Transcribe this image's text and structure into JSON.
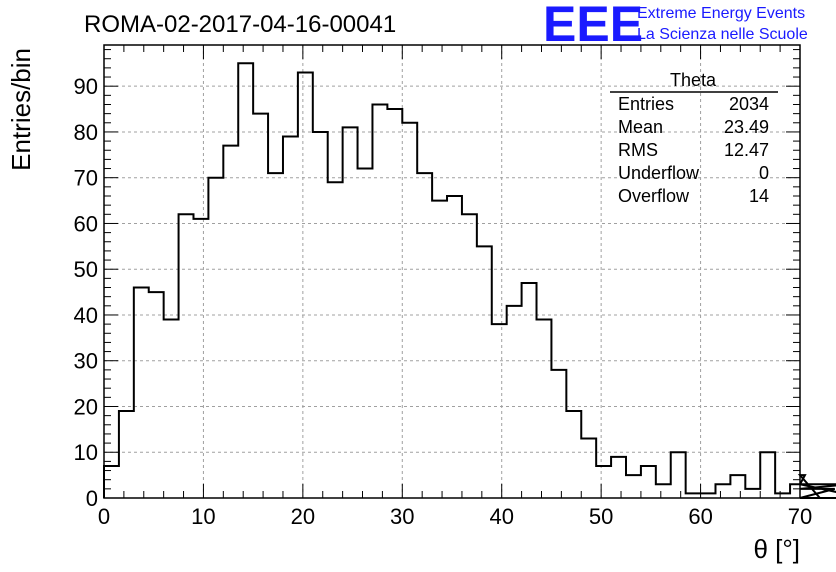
{
  "page_title": "ROMA-02-2017-04-16-00041",
  "brand": {
    "logo_text": "EEE",
    "line1": "Extreme Energy Events",
    "line2": "La Scienza nelle Scuole",
    "color": "#1a1aff"
  },
  "stats_box": {
    "title": "Theta",
    "rows": [
      {
        "label": "Entries",
        "value": "2034"
      },
      {
        "label": "Mean",
        "value": "23.49"
      },
      {
        "label": "RMS",
        "value": "12.47"
      },
      {
        "label": "Underflow",
        "value": "0"
      },
      {
        "label": "Overflow",
        "value": "14"
      }
    ]
  },
  "chart_data": {
    "type": "bar",
    "title": "ROMA-02-2017-04-16-00041",
    "xlabel": "θ [°]",
    "ylabel": "Entries/bin",
    "xlim": [
      0,
      70
    ],
    "ylim": [
      0,
      99
    ],
    "xticks": [
      0,
      10,
      20,
      30,
      40,
      50,
      60,
      70
    ],
    "yticks": [
      0,
      10,
      20,
      30,
      40,
      50,
      60,
      70,
      80,
      90
    ],
    "grid": true,
    "bin_width": 1.5,
    "values": [
      7,
      19,
      46,
      45,
      39,
      62,
      61,
      70,
      77,
      95,
      84,
      71,
      79,
      93,
      80,
      69,
      81,
      72,
      86,
      85,
      82,
      71,
      65,
      66,
      62,
      55,
      38,
      42,
      47,
      39,
      28,
      19,
      13,
      7,
      9,
      5,
      7,
      3,
      10,
      1,
      1,
      3,
      5,
      2,
      10,
      1,
      3,
      5,
      0,
      2,
      3,
      0
    ],
    "line_color": "#000000",
    "grid_color": "#a0a0a0"
  }
}
